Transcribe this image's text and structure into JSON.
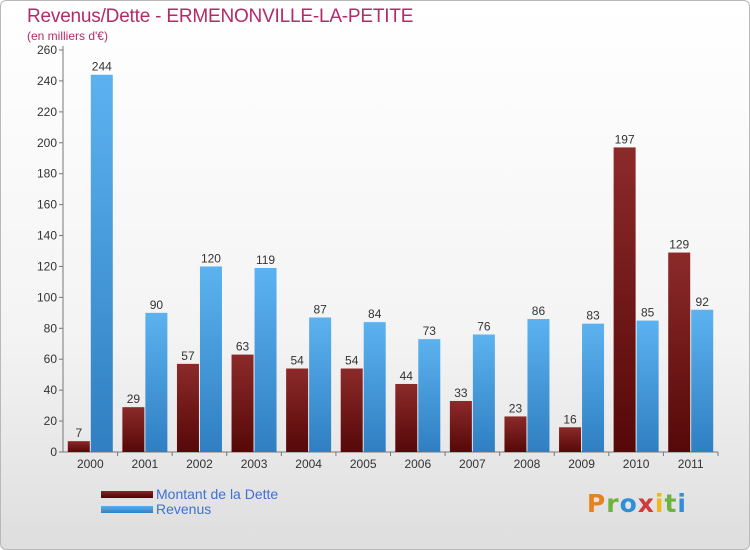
{
  "header": {
    "title": "Revenus/Dette - ERMENONVILLE-LA-PETITE",
    "subtitle": "(en milliers d'€)"
  },
  "chart_data": {
    "type": "bar",
    "title": "Revenus/Dette - ERMENONVILLE-LA-PETITE",
    "subtitle": "(en milliers d'€)",
    "categories": [
      "2000",
      "2001",
      "2002",
      "2003",
      "2004",
      "2005",
      "2006",
      "2007",
      "2008",
      "2009",
      "2010",
      "2011"
    ],
    "series": [
      {
        "name": "Montant de la Dette",
        "color": "#7a1a1a",
        "values": [
          7,
          29,
          57,
          63,
          54,
          54,
          44,
          33,
          23,
          16,
          197,
          129
        ]
      },
      {
        "name": "Revenus",
        "color": "#3a94d8",
        "values": [
          244,
          90,
          120,
          119,
          87,
          84,
          73,
          76,
          86,
          83,
          85,
          92
        ]
      }
    ],
    "yticks": [
      0,
      20,
      40,
      60,
      80,
      100,
      120,
      140,
      160,
      180,
      200,
      220,
      240,
      260
    ],
    "ylim": [
      0,
      260
    ],
    "grid": false,
    "legend_position": "bottom-left",
    "data_labels": true
  },
  "logo": {
    "letters": [
      "P",
      "r",
      "o",
      "x",
      "i",
      "t",
      "i"
    ],
    "colors": [
      "#e8821e",
      "#6cb33f",
      "#2f8fd8",
      "#d33a3a",
      "#f2b61e",
      "#6cb33f",
      "#2f8fd8"
    ]
  }
}
